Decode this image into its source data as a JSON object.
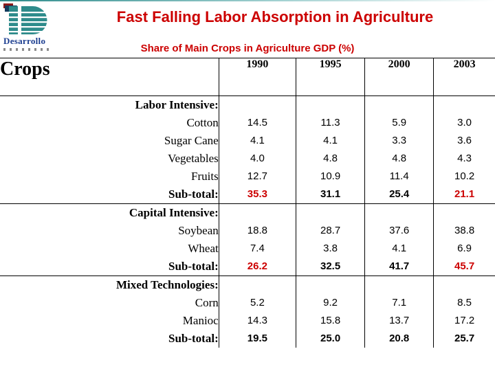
{
  "slide": {
    "title": "Fast Falling Labor Absorption in Agriculture",
    "subtitle": "Share of Main Crops in Agriculture GDP (%)"
  },
  "logo": {
    "icon": "striped-d-logo-icon",
    "text": "Desarrollo"
  },
  "colors": {
    "accent_red": "#cc0000",
    "logo_teal": "#2e8b8b",
    "logo_navy": "#1a3c8f",
    "border_black": "#000000"
  },
  "table": {
    "header": {
      "crops": "Crops",
      "years": [
        "1990",
        "1995",
        "2000",
        "2003"
      ]
    },
    "groups": [
      {
        "label": "Labor Intensive:",
        "items": [
          "Cotton",
          "Sugar Cane",
          "Vegetables",
          "Fruits"
        ],
        "subtotal_label": "Sub-total:",
        "values": [
          [
            "14.5",
            "11.3",
            "5.9",
            "3.0"
          ],
          [
            "4.1",
            "4.1",
            "3.3",
            "3.6"
          ],
          [
            "4.0",
            "4.8",
            "4.8",
            "4.3"
          ],
          [
            "12.7",
            "10.9",
            "11.4",
            "10.2"
          ]
        ],
        "subtotal": [
          "35.3",
          "31.1",
          "25.4",
          "21.1"
        ],
        "subtotal_red": [
          true,
          false,
          false,
          true
        ]
      },
      {
        "label": "Capital Intensive:",
        "items": [
          "Soybean",
          "Wheat"
        ],
        "subtotal_label": "Sub-total:",
        "values": [
          [
            "18.8",
            "28.7",
            "37.6",
            "38.8"
          ],
          [
            "7.4",
            "3.8",
            "4.1",
            "6.9"
          ]
        ],
        "subtotal": [
          "26.2",
          "32.5",
          "41.7",
          "45.7"
        ],
        "subtotal_red": [
          true,
          false,
          false,
          true
        ]
      },
      {
        "label": "Mixed Technologies:",
        "items": [
          "Corn",
          "Manioc"
        ],
        "subtotal_label": "Sub-total:",
        "values": [
          [
            "5.2",
            "9.2",
            "7.1",
            "8.5"
          ],
          [
            "14.3",
            "15.8",
            "13.7",
            "17.2"
          ]
        ],
        "subtotal": [
          "19.5",
          "25.0",
          "20.8",
          "25.7"
        ],
        "subtotal_red": [
          false,
          false,
          false,
          false
        ]
      }
    ]
  }
}
